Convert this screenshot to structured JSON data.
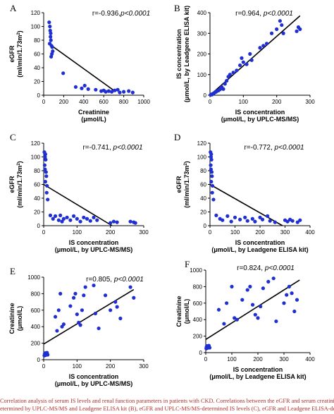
{
  "caption": {
    "line1": "Correlation analysis of serum IS levels and renal function parameters in patients with CKD. Correlations between the eGFR and serum creatinine le",
    "line2": "etermined by UPLC-MS/MS and Leadgene ELISA kit (B), eGFR and UPLC-MS/MS-determined IS levels (C), eGFR and Leadgene ELISA-determined IS l"
  },
  "colors": {
    "points": "#1f2fd1",
    "line": "#000000",
    "caption": "#b0312c"
  },
  "chart_data": [
    {
      "panel": "A",
      "type": "scatter",
      "corr": "r=-0.936,",
      "pval": "p<0.0001",
      "xlabel": [
        "Creatinine",
        "(μmol/L)"
      ],
      "ylabel": [
        "eGFR",
        "(ml/min/1.73m",
        "2",
        ")"
      ],
      "xlim": [
        0,
        1000
      ],
      "ylim": [
        0,
        120
      ],
      "xticks": [
        0,
        200,
        400,
        600,
        800,
        1000
      ],
      "yticks": [
        0,
        20,
        40,
        60,
        80,
        100,
        120
      ],
      "fit": [
        [
          80,
          72
        ],
        [
          720,
          5
        ]
      ],
      "points": [
        [
          55,
          106
        ],
        [
          62,
          100
        ],
        [
          65,
          94
        ],
        [
          70,
          90
        ],
        [
          68,
          85
        ],
        [
          72,
          80
        ],
        [
          60,
          75
        ],
        [
          78,
          72
        ],
        [
          85,
          70
        ],
        [
          90,
          64
        ],
        [
          82,
          60
        ],
        [
          75,
          56
        ],
        [
          195,
          32
        ],
        [
          320,
          12
        ],
        [
          380,
          10
        ],
        [
          410,
          14
        ],
        [
          445,
          9
        ],
        [
          520,
          8
        ],
        [
          575,
          6
        ],
        [
          600,
          7
        ],
        [
          620,
          5
        ],
        [
          650,
          6
        ],
        [
          680,
          5
        ],
        [
          710,
          7
        ],
        [
          740,
          8
        ],
        [
          760,
          4
        ],
        [
          800,
          5
        ],
        [
          850,
          6
        ],
        [
          890,
          4
        ]
      ]
    },
    {
      "panel": "B",
      "type": "scatter",
      "corr": "r=0.964, ",
      "pval": "p<0.0001",
      "xlabel": [
        "IS concentration",
        "(μmol/L, by UPLC-MS/MS)"
      ],
      "ylabel": [
        "IS concentration",
        "(μmol/L, by Leadgene ELISA kit)"
      ],
      "xlim": [
        0,
        300
      ],
      "ylim": [
        0,
        400
      ],
      "xticks": [
        0,
        100,
        200,
        300
      ],
      "yticks": [
        0,
        100,
        200,
        300,
        400
      ],
      "fit": [
        [
          0,
          0
        ],
        [
          270,
          385
        ]
      ],
      "points": [
        [
          2,
          2
        ],
        [
          4,
          4
        ],
        [
          6,
          3
        ],
        [
          8,
          6
        ],
        [
          10,
          8
        ],
        [
          12,
          10
        ],
        [
          15,
          14
        ],
        [
          18,
          16
        ],
        [
          20,
          20
        ],
        [
          25,
          22
        ],
        [
          30,
          28
        ],
        [
          35,
          40
        ],
        [
          40,
          30
        ],
        [
          45,
          55
        ],
        [
          50,
          70
        ],
        [
          55,
          90
        ],
        [
          60,
          100
        ],
        [
          70,
          110
        ],
        [
          80,
          120
        ],
        [
          90,
          145
        ],
        [
          95,
          180
        ],
        [
          100,
          160
        ],
        [
          110,
          150
        ],
        [
          120,
          200
        ],
        [
          125,
          170
        ],
        [
          150,
          230
        ],
        [
          160,
          240
        ],
        [
          170,
          250
        ],
        [
          185,
          300
        ],
        [
          200,
          320
        ],
        [
          210,
          360
        ],
        [
          215,
          340
        ],
        [
          220,
          300
        ],
        [
          260,
          310
        ],
        [
          265,
          330
        ],
        [
          270,
          320
        ]
      ]
    },
    {
      "panel": "C",
      "type": "scatter",
      "corr": "r=-0.741, ",
      "pval": "p<0.0001",
      "xlabel": [
        "IS concentration",
        "(μmol/L, by UPLC-MS/MS)"
      ],
      "ylabel": [
        "eGFR",
        "(ml/min/1.73m",
        "2",
        ")"
      ],
      "xlim": [
        0,
        300
      ],
      "ylim": [
        0,
        120
      ],
      "xticks": [
        0,
        100,
        200,
        300
      ],
      "yticks": [
        0,
        20,
        40,
        60,
        80,
        100,
        120
      ],
      "fit": [
        [
          0,
          60
        ],
        [
          205,
          0
        ]
      ],
      "points": [
        [
          2,
          107
        ],
        [
          4,
          100
        ],
        [
          5,
          104
        ],
        [
          6,
          96
        ],
        [
          3,
          88
        ],
        [
          4,
          82
        ],
        [
          7,
          78
        ],
        [
          8,
          72
        ],
        [
          5,
          64
        ],
        [
          10,
          58
        ],
        [
          9,
          48
        ],
        [
          12,
          38
        ],
        [
          20,
          15
        ],
        [
          28,
          10
        ],
        [
          35,
          14
        ],
        [
          45,
          8
        ],
        [
          50,
          15
        ],
        [
          55,
          6
        ],
        [
          60,
          10
        ],
        [
          70,
          12
        ],
        [
          80,
          8
        ],
        [
          90,
          14
        ],
        [
          100,
          10
        ],
        [
          110,
          6
        ],
        [
          120,
          12
        ],
        [
          130,
          10
        ],
        [
          140,
          7
        ],
        [
          150,
          12
        ],
        [
          160,
          8
        ],
        [
          200,
          4
        ],
        [
          210,
          6
        ],
        [
          220,
          5
        ],
        [
          260,
          6
        ],
        [
          270,
          5
        ],
        [
          275,
          4
        ]
      ]
    },
    {
      "panel": "D",
      "type": "scatter",
      "corr": "r=-0.772, ",
      "pval": "p<0.0001",
      "xlabel": [
        "IS concentration",
        "(μmol/L, by Leadgene ELISA kit)"
      ],
      "ylabel": [
        "eGFR",
        "(ml/min/1.73m",
        "2",
        ")"
      ],
      "xlim": [
        0,
        400
      ],
      "ylim": [
        0,
        120
      ],
      "xticks": [
        0,
        100,
        200,
        300,
        400
      ],
      "yticks": [
        0,
        20,
        40,
        60,
        80,
        100,
        120
      ],
      "fit": [
        [
          0,
          60
        ],
        [
          290,
          0
        ]
      ],
      "points": [
        [
          2,
          107
        ],
        [
          4,
          100
        ],
        [
          5,
          104
        ],
        [
          6,
          96
        ],
        [
          3,
          88
        ],
        [
          4,
          82
        ],
        [
          7,
          78
        ],
        [
          8,
          72
        ],
        [
          5,
          64
        ],
        [
          10,
          58
        ],
        [
          9,
          48
        ],
        [
          14,
          38
        ],
        [
          25,
          15
        ],
        [
          40,
          10
        ],
        [
          50,
          8
        ],
        [
          70,
          14
        ],
        [
          85,
          6
        ],
        [
          100,
          12
        ],
        [
          120,
          9
        ],
        [
          140,
          12
        ],
        [
          150,
          7
        ],
        [
          170,
          10
        ],
        [
          180,
          6
        ],
        [
          200,
          12
        ],
        [
          210,
          9
        ],
        [
          230,
          14
        ],
        [
          240,
          7
        ],
        [
          260,
          5
        ],
        [
          300,
          8
        ],
        [
          310,
          6
        ],
        [
          320,
          9
        ],
        [
          330,
          7
        ],
        [
          350,
          5
        ],
        [
          360,
          8
        ]
      ]
    },
    {
      "panel": "E",
      "type": "scatter",
      "corr": "r=0.805, ",
      "pval": "p<0.0001",
      "xlabel": [
        "IS concentration",
        "(μmol/L, by UPLC-MS/MS)"
      ],
      "ylabel": [
        "Creatinine",
        "(μmol/L)"
      ],
      "xlim": [
        0,
        300
      ],
      "ylim": [
        0,
        1000
      ],
      "xticks": [
        0,
        100,
        200,
        300
      ],
      "yticks": [
        0,
        200,
        400,
        600,
        800,
        1000
      ],
      "fit": [
        [
          0,
          190
        ],
        [
          270,
          850
        ]
      ],
      "points": [
        [
          2,
          50
        ],
        [
          3,
          70
        ],
        [
          4,
          60
        ],
        [
          5,
          80
        ],
        [
          6,
          55
        ],
        [
          7,
          75
        ],
        [
          8,
          65
        ],
        [
          10,
          85
        ],
        [
          12,
          60
        ],
        [
          35,
          520
        ],
        [
          40,
          350
        ],
        [
          45,
          600
        ],
        [
          50,
          800
        ],
        [
          55,
          400
        ],
        [
          60,
          430
        ],
        [
          80,
          650
        ],
        [
          90,
          750
        ],
        [
          95,
          800
        ],
        [
          100,
          550
        ],
        [
          105,
          450
        ],
        [
          110,
          420
        ],
        [
          115,
          600
        ],
        [
          120,
          780
        ],
        [
          125,
          880
        ],
        [
          150,
          900
        ],
        [
          155,
          560
        ],
        [
          165,
          380
        ],
        [
          185,
          780
        ],
        [
          200,
          600
        ],
        [
          215,
          700
        ],
        [
          220,
          640
        ],
        [
          230,
          500
        ],
        [
          260,
          880
        ],
        [
          270,
          750
        ]
      ]
    },
    {
      "panel": "F",
      "type": "scatter",
      "corr": "r=0.824, ",
      "pval": "p<0.0001",
      "xlabel": [
        "IS concentration",
        "(μmol/L, by Leadgene ELISA kit)"
      ],
      "ylabel": [
        "Creatinine",
        "(μmol/L)"
      ],
      "xlim": [
        0,
        400
      ],
      "ylim": [
        0,
        1000
      ],
      "xticks": [
        0,
        100,
        200,
        300,
        400
      ],
      "yticks": [
        0,
        200,
        400,
        600,
        800,
        1000
      ],
      "fit": [
        [
          0,
          160
        ],
        [
          360,
          880
        ]
      ],
      "points": [
        [
          2,
          50
        ],
        [
          3,
          70
        ],
        [
          4,
          60
        ],
        [
          5,
          80
        ],
        [
          6,
          55
        ],
        [
          8,
          75
        ],
        [
          10,
          65
        ],
        [
          12,
          85
        ],
        [
          15,
          60
        ],
        [
          50,
          520
        ],
        [
          70,
          350
        ],
        [
          80,
          600
        ],
        [
          100,
          800
        ],
        [
          110,
          420
        ],
        [
          120,
          400
        ],
        [
          140,
          640
        ],
        [
          160,
          760
        ],
        [
          170,
          800
        ],
        [
          180,
          580
        ],
        [
          190,
          460
        ],
        [
          200,
          420
        ],
        [
          210,
          560
        ],
        [
          220,
          780
        ],
        [
          240,
          860
        ],
        [
          260,
          900
        ],
        [
          270,
          380
        ],
        [
          300,
          600
        ],
        [
          310,
          700
        ],
        [
          320,
          800
        ],
        [
          330,
          720
        ],
        [
          340,
          500
        ],
        [
          350,
          640
        ]
      ]
    }
  ]
}
